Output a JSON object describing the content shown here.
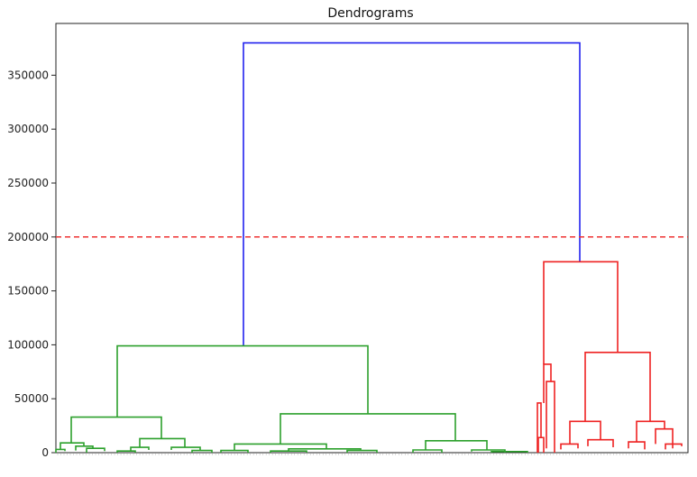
{
  "chart_data": {
    "type": "dendrogram",
    "title": "Dendrograms",
    "xlabel": "",
    "ylabel": "",
    "ylim": [
      0,
      398000
    ],
    "yticks": [
      0,
      50000,
      100000,
      150000,
      200000,
      250000,
      300000,
      350000
    ],
    "ytick_labels": [
      "0",
      "50000",
      "100000",
      "150000",
      "200000",
      "250000",
      "300000",
      "350000"
    ],
    "grid": false,
    "threshold": {
      "value": 200000,
      "color": "#ee3333",
      "style": "dashed"
    },
    "colors": {
      "cluster_1": "#2ca02c",
      "cluster_2": "#ee2222",
      "above_threshold": "#2222ee"
    },
    "merges": [
      {
        "left": 0.07,
        "right": 0.53,
        "height": 380000,
        "color": "above_threshold"
      },
      {
        "left": 0.07,
        "right": 0.24,
        "height": 380000,
        "color": "above_threshold"
      },
      {
        "left": 0.07,
        "right": 0.53,
        "height": 177000,
        "color": "cluster_2"
      },
      {
        "left": 0.07,
        "right": 0.53,
        "height": 99000,
        "color": "cluster_1"
      },
      {
        "left": 0.07,
        "right": 0.53,
        "height": 33000,
        "color": "cluster_1"
      },
      {
        "left": 0.07,
        "right": 0.53,
        "height": 36000,
        "color": "cluster_1"
      },
      {
        "left": 0.07,
        "right": 0.53,
        "height": 93000,
        "color": "cluster_2"
      }
    ],
    "leaf_count": 200
  }
}
